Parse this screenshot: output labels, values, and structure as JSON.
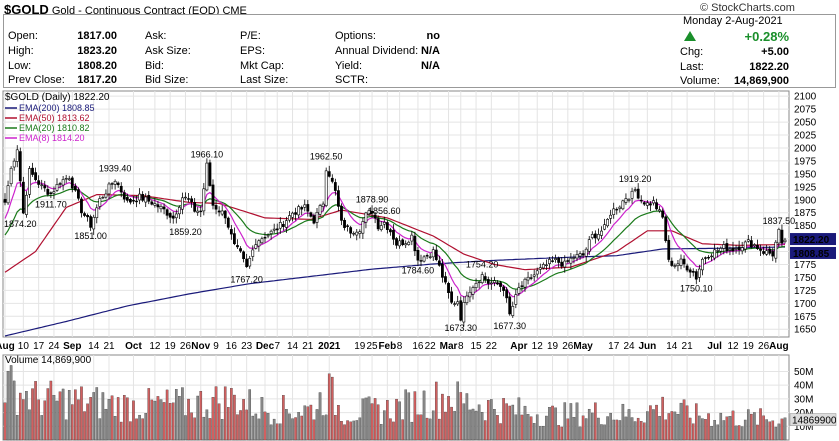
{
  "header": {
    "symbol": "$GOLD",
    "description": "Gold - Continuous Contract (EOD)",
    "exchange": "CME",
    "credit": "© StockCharts.com",
    "date": "Monday  2-Aug-2021"
  },
  "quote_left": [
    {
      "label": "Open:",
      "value": "1817.00"
    },
    {
      "label": "High:",
      "value": "1823.20"
    },
    {
      "label": "Low:",
      "value": "1808.20"
    },
    {
      "label": "Prev Close:",
      "value": "1817.20"
    }
  ],
  "quote_mid": [
    {
      "label": "Ask:",
      "value": ""
    },
    {
      "label": "Ask Size:",
      "value": ""
    },
    {
      "label": "Bid:",
      "value": ""
    },
    {
      "label": "Bid Size:",
      "value": ""
    }
  ],
  "quote_mid2": [
    {
      "label": "P/E:",
      "value": ""
    },
    {
      "label": "EPS:",
      "value": ""
    },
    {
      "label": "Mkt Cap:",
      "value": ""
    },
    {
      "label": "Last Size:",
      "value": ""
    }
  ],
  "quote_right": [
    {
      "label": "Options:",
      "value": "no"
    },
    {
      "label": "Annual Dividend:",
      "value": "N/A"
    },
    {
      "label": "Yield:",
      "value": "N/A"
    },
    {
      "label": "SCTR:",
      "value": ""
    }
  ],
  "quote_change": {
    "pct": "+0.28%",
    "chg_label": "Chg:",
    "chg": "+5.00",
    "last_label": "Last:",
    "last": "1822.20",
    "vol_label": "Volume:",
    "volume": "14,869,900"
  },
  "colors": {
    "up": "#1a8f2b",
    "ema200": "#1a1a7a",
    "ema50": "#b01030",
    "ema20": "#1a7a1a",
    "ema8": "#cc22cc",
    "vol_up": "#888888",
    "vol_down": "#d06060",
    "price_label_bg": "#1a1a7a"
  },
  "chart_data": {
    "type": "candlestick",
    "title": "$GOLD (Daily) 1822.20",
    "ylim": [
      1635,
      2110
    ],
    "y_ticks": [
      1650,
      1675,
      1700,
      1725,
      1750,
      1775,
      1800,
      1825,
      1850,
      1875,
      1900,
      1925,
      1950,
      1975,
      2000,
      2025,
      2050,
      2075,
      2100
    ],
    "x_ticks": [
      {
        "label": "Aug",
        "i": 0,
        "bold": true
      },
      {
        "label": "10",
        "i": 6
      },
      {
        "label": "17",
        "i": 11
      },
      {
        "label": "24",
        "i": 16
      },
      {
        "label": "Sep",
        "i": 22,
        "bold": true
      },
      {
        "label": "14",
        "i": 29
      },
      {
        "label": "21",
        "i": 34
      },
      {
        "label": "Oct",
        "i": 42,
        "bold": true
      },
      {
        "label": "12",
        "i": 49
      },
      {
        "label": "19",
        "i": 54
      },
      {
        "label": "26",
        "i": 59
      },
      {
        "label": "Nov",
        "i": 64,
        "bold": true
      },
      {
        "label": "9",
        "i": 69
      },
      {
        "label": "16",
        "i": 74
      },
      {
        "label": "23",
        "i": 79
      },
      {
        "label": "Dec",
        "i": 85,
        "bold": true
      },
      {
        "label": "7",
        "i": 89
      },
      {
        "label": "14",
        "i": 94
      },
      {
        "label": "21",
        "i": 99
      },
      {
        "label": "2021",
        "i": 106,
        "bold": true
      },
      {
        "label": "19",
        "i": 116
      },
      {
        "label": "25",
        "i": 120
      },
      {
        "label": "Feb",
        "i": 125,
        "bold": true
      },
      {
        "label": "8",
        "i": 129
      },
      {
        "label": "16",
        "i": 135
      },
      {
        "label": "22",
        "i": 139
      },
      {
        "label": "Mar",
        "i": 145,
        "bold": true
      },
      {
        "label": "8",
        "i": 149
      },
      {
        "label": "15",
        "i": 154
      },
      {
        "label": "22",
        "i": 159
      },
      {
        "label": "Apr",
        "i": 168,
        "bold": true
      },
      {
        "label": "12",
        "i": 174
      },
      {
        "label": "19",
        "i": 179
      },
      {
        "label": "26",
        "i": 184
      },
      {
        "label": "May",
        "i": 189,
        "bold": true
      },
      {
        "label": "17",
        "i": 199
      },
      {
        "label": "24",
        "i": 204
      },
      {
        "label": "Jun",
        "i": 210,
        "bold": true
      },
      {
        "label": "14",
        "i": 218
      },
      {
        "label": "21",
        "i": 223
      },
      {
        "label": "Jul",
        "i": 232,
        "bold": true
      },
      {
        "label": "12",
        "i": 238
      },
      {
        "label": "19",
        "i": 243
      },
      {
        "label": "26",
        "i": 248
      },
      {
        "label": "Aug",
        "i": 253,
        "bold": true
      }
    ],
    "close_key": [
      [
        0,
        1895
      ],
      [
        2,
        1960
      ],
      [
        4,
        2000
      ],
      [
        6,
        1874.2
      ],
      [
        8,
        1955
      ],
      [
        12,
        1925
      ],
      [
        15,
        1911.7
      ],
      [
        18,
        1935
      ],
      [
        21,
        1945
      ],
      [
        25,
        1880
      ],
      [
        28,
        1851
      ],
      [
        31,
        1900
      ],
      [
        36,
        1939.4
      ],
      [
        40,
        1895
      ],
      [
        44,
        1905
      ],
      [
        48,
        1895
      ],
      [
        52,
        1880
      ],
      [
        55,
        1865
      ],
      [
        58,
        1905
      ],
      [
        60,
        1900
      ],
      [
        62,
        1880
      ],
      [
        64,
        1878
      ],
      [
        66,
        1966.1
      ],
      [
        68,
        1890
      ],
      [
        72,
        1870
      ],
      [
        75,
        1810
      ],
      [
        77,
        1795
      ],
      [
        79,
        1767.2
      ],
      [
        82,
        1820
      ],
      [
        85,
        1830
      ],
      [
        88,
        1840
      ],
      [
        91,
        1855
      ],
      [
        94,
        1875
      ],
      [
        96,
        1880
      ],
      [
        98,
        1885
      ],
      [
        101,
        1860
      ],
      [
        104,
        1895
      ],
      [
        105,
        1962.5
      ],
      [
        106,
        1950
      ],
      [
        108,
        1915
      ],
      [
        110,
        1855
      ],
      [
        113,
        1840
      ],
      [
        116,
        1845
      ],
      [
        118,
        1870
      ],
      [
        120,
        1878.9
      ],
      [
        122,
        1850
      ],
      [
        124,
        1856.6
      ],
      [
        126,
        1840
      ],
      [
        128,
        1815
      ],
      [
        131,
        1820
      ],
      [
        133,
        1830
      ],
      [
        135,
        1784.6
      ],
      [
        137,
        1790
      ],
      [
        140,
        1800
      ],
      [
        142,
        1770
      ],
      [
        144,
        1735
      ],
      [
        146,
        1700
      ],
      [
        148,
        1705
      ],
      [
        149,
        1673.3
      ],
      [
        151,
        1720
      ],
      [
        153,
        1735
      ],
      [
        156,
        1754.2
      ],
      [
        158,
        1740
      ],
      [
        161,
        1737
      ],
      [
        163,
        1730
      ],
      [
        164,
        1705
      ],
      [
        165,
        1677.3
      ],
      [
        168,
        1728
      ],
      [
        170,
        1740
      ],
      [
        172,
        1750
      ],
      [
        175,
        1765
      ],
      [
        178,
        1778
      ],
      [
        180,
        1782
      ],
      [
        183,
        1775
      ],
      [
        186,
        1790
      ],
      [
        189,
        1793
      ],
      [
        192,
        1830
      ],
      [
        194,
        1835
      ],
      [
        196,
        1845
      ],
      [
        198,
        1875
      ],
      [
        201,
        1890
      ],
      [
        203,
        1905
      ],
      [
        205,
        1910
      ],
      [
        206,
        1919.2
      ],
      [
        208,
        1900
      ],
      [
        210,
        1892
      ],
      [
        212,
        1895
      ],
      [
        215,
        1865
      ],
      [
        217,
        1780
      ],
      [
        219,
        1775
      ],
      [
        221,
        1780
      ],
      [
        223,
        1770
      ],
      [
        225,
        1760
      ],
      [
        226,
        1750.1
      ],
      [
        228,
        1785
      ],
      [
        230,
        1795
      ],
      [
        232,
        1800
      ],
      [
        235,
        1808
      ],
      [
        238,
        1805
      ],
      [
        240,
        1810
      ],
      [
        243,
        1818
      ],
      [
        245,
        1813
      ],
      [
        248,
        1800
      ],
      [
        251,
        1795
      ],
      [
        253,
        1837.5
      ],
      [
        254,
        1810
      ],
      [
        255,
        1822.2
      ]
    ],
    "ema200_key": [
      [
        0,
        1637
      ],
      [
        20,
        1665
      ],
      [
        40,
        1695
      ],
      [
        60,
        1718
      ],
      [
        80,
        1738
      ],
      [
        100,
        1752
      ],
      [
        120,
        1766
      ],
      [
        140,
        1776
      ],
      [
        160,
        1783
      ],
      [
        180,
        1788
      ],
      [
        200,
        1792
      ],
      [
        215,
        1805
      ],
      [
        230,
        1806
      ],
      [
        255,
        1808.85
      ]
    ],
    "ema50_key": [
      [
        0,
        1760
      ],
      [
        10,
        1800
      ],
      [
        20,
        1885
      ],
      [
        30,
        1910
      ],
      [
        45,
        1908
      ],
      [
        60,
        1895
      ],
      [
        70,
        1893
      ],
      [
        85,
        1865
      ],
      [
        100,
        1862
      ],
      [
        110,
        1880
      ],
      [
        125,
        1865
      ],
      [
        140,
        1830
      ],
      [
        150,
        1795
      ],
      [
        160,
        1775
      ],
      [
        170,
        1765
      ],
      [
        185,
        1770
      ],
      [
        200,
        1800
      ],
      [
        210,
        1840
      ],
      [
        218,
        1840
      ],
      [
        228,
        1815
      ],
      [
        240,
        1812
      ],
      [
        255,
        1813.62
      ]
    ],
    "annotations": [
      {
        "i": 5,
        "value": 1874.2,
        "text": "1874.20",
        "pos": "below"
      },
      {
        "i": 15,
        "value": 1911.7,
        "text": "1911.70",
        "pos": "below"
      },
      {
        "i": 28,
        "value": 1851,
        "text": "1851.00",
        "pos": "below"
      },
      {
        "i": 36,
        "value": 1939.4,
        "text": "1939.40",
        "pos": "above"
      },
      {
        "i": 59,
        "value": 1859.2,
        "text": "1859.20",
        "pos": "below"
      },
      {
        "i": 66,
        "value": 1966.1,
        "text": "1966.10",
        "pos": "above"
      },
      {
        "i": 79,
        "value": 1767.2,
        "text": "1767.20",
        "pos": "below"
      },
      {
        "i": 105,
        "value": 1962.5,
        "text": "1962.50",
        "pos": "above"
      },
      {
        "i": 120,
        "value": 1878.9,
        "text": "1878.90",
        "pos": "above"
      },
      {
        "i": 124,
        "value": 1856.6,
        "text": "1856.60",
        "pos": "above"
      },
      {
        "i": 135,
        "value": 1784.6,
        "text": "1784.60",
        "pos": "below"
      },
      {
        "i": 149,
        "value": 1673.3,
        "text": "1673.30",
        "pos": "below"
      },
      {
        "i": 156,
        "value": 1754.2,
        "text": "1754.20",
        "pos": "above"
      },
      {
        "i": 165,
        "value": 1677.3,
        "text": "1677.30",
        "pos": "below"
      },
      {
        "i": 206,
        "value": 1919.2,
        "text": "1919.20",
        "pos": "above"
      },
      {
        "i": 226,
        "value": 1750.1,
        "text": "1750.10",
        "pos": "below"
      },
      {
        "i": 253,
        "value": 1837.5,
        "text": "1837.50",
        "pos": "above"
      }
    ],
    "legend": [
      {
        "name": "EMA(200)",
        "value": "1808.85",
        "color": "#1a1a7a"
      },
      {
        "name": "EMA(50)",
        "value": "1813.62",
        "color": "#b01030"
      },
      {
        "name": "EMA(20)",
        "value": "1810.82",
        "color": "#1a7a1a"
      },
      {
        "name": "EMA(8)",
        "value": "1814.20",
        "color": "#cc22cc"
      }
    ],
    "price_labels": [
      "1822.20",
      "1808.85"
    ],
    "volume": {
      "title": "Volume 14,869,900",
      "ylim": [
        0,
        62
      ],
      "y_ticks": [
        {
          "v": 10,
          "label": "10M"
        },
        {
          "v": 20,
          "label": "20M"
        },
        {
          "v": 30,
          "label": "30M"
        },
        {
          "v": 40,
          "label": "40M"
        },
        {
          "v": 50,
          "label": "50M"
        }
      ],
      "last_label": "14869900",
      "key": [
        [
          0,
          40
        ],
        [
          10,
          30
        ],
        [
          25,
          28
        ],
        [
          40,
          25
        ],
        [
          60,
          26
        ],
        [
          75,
          30
        ],
        [
          85,
          22
        ],
        [
          100,
          22
        ],
        [
          106,
          35
        ],
        [
          110,
          20
        ],
        [
          125,
          22
        ],
        [
          145,
          32
        ],
        [
          150,
          28
        ],
        [
          165,
          22
        ],
        [
          180,
          18
        ],
        [
          195,
          20
        ],
        [
          205,
          18
        ],
        [
          215,
          24
        ],
        [
          225,
          18
        ],
        [
          240,
          16
        ],
        [
          255,
          15
        ]
      ]
    }
  }
}
